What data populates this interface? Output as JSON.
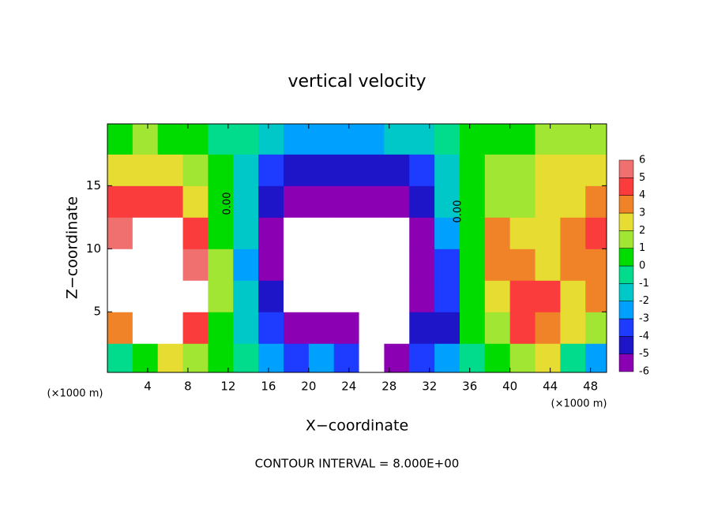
{
  "chart_data": {
    "type": "heatmap",
    "title": "vertical velocity",
    "x_label": "X−coordinate",
    "y_label": "Z−coordinate",
    "x_unit": "(×1000 m)",
    "x_unit_right": "(×1000 m)",
    "footer": "CONTOUR INTERVAL = 8.000E+00",
    "contour_labels": [
      "0.00",
      "0.00"
    ],
    "xlim": [
      0,
      49.6
    ],
    "ylim": [
      0.2,
      19.9
    ],
    "xticks": [
      4,
      8,
      12,
      16,
      20,
      24,
      28,
      32,
      36,
      40,
      44,
      48
    ],
    "yticks": [
      5,
      10,
      15
    ],
    "x": [
      1.25,
      3.75,
      6.25,
      8.75,
      11.25,
      13.75,
      16.25,
      18.75,
      21.25,
      23.75,
      26.25,
      28.75,
      31.25,
      33.75,
      36.25,
      38.75,
      41.25,
      43.75,
      46.25,
      48.75
    ],
    "y": [
      1.25,
      3.75,
      6.25,
      8.75,
      11.25,
      13.75,
      16.25,
      18.75
    ],
    "z": [
      [
        0,
        4,
        8,
        8,
        5.5,
        4.5,
        3,
        1
      ],
      [
        1,
        7,
        8,
        8,
        7,
        4.5,
        3,
        1.5
      ],
      [
        3,
        7,
        8,
        8,
        7,
        4.5,
        2.5,
        1
      ],
      [
        2,
        5,
        6.5,
        5.5,
        5,
        3,
        1.5,
        0.5
      ],
      [
        0.5,
        1,
        1.5,
        1.5,
        1,
        0.5,
        0.5,
        0
      ],
      [
        -0.5,
        -1,
        -1.5,
        -2,
        -1.5,
        -1,
        -1,
        -0.5
      ],
      [
        -2,
        -3,
        -4.5,
        -5,
        -5,
        -4.5,
        -3,
        -1.5
      ],
      [
        -3,
        -5,
        -8,
        -8,
        -8,
        -5,
        -4,
        -2
      ],
      [
        -2,
        -5,
        -7,
        -8,
        -8,
        -5,
        -4,
        -2
      ],
      [
        -3,
        -5,
        -8,
        -8,
        -7,
        -5,
        -4,
        -2
      ],
      [
        -8,
        -8,
        -8,
        -8,
        -8,
        -6,
        -4,
        -2
      ],
      [
        -5,
        -8,
        -8,
        -8,
        -8,
        -5,
        -4,
        -1.5
      ],
      [
        -3,
        -4.5,
        -5,
        -5,
        -5,
        -4,
        -3,
        -1
      ],
      [
        -2,
        -4,
        -3.5,
        -3,
        -2,
        -1.5,
        -1,
        0
      ],
      [
        -0.5,
        0.5,
        0.5,
        0.5,
        0.5,
        0.5,
        0.5,
        0.5
      ],
      [
        1,
        2,
        3,
        3.5,
        4,
        2,
        1.5,
        1
      ],
      [
        2,
        4.5,
        4.5,
        3.5,
        2.5,
        2,
        1.5,
        1
      ],
      [
        3,
        4,
        4.5,
        3,
        3,
        2.5,
        3,
        1.5
      ],
      [
        -0.5,
        3,
        3,
        4,
        4,
        3,
        2.5,
        1.5
      ],
      [
        -2,
        2,
        4,
        4,
        4.5,
        4,
        2.5,
        1.5
      ]
    ],
    "levels": [
      -6,
      -5,
      -4,
      -3,
      -2,
      -1,
      0,
      1,
      2,
      3,
      4,
      5,
      6
    ],
    "colors": [
      "#8c00b4",
      "#1e14c8",
      "#1e3cff",
      "#00a0ff",
      "#00c8c8",
      "#00dc8c",
      "#00dc00",
      "#a0e632",
      "#e6dc32",
      "#f08228",
      "#fa3c3c",
      "#f07070"
    ],
    "out_of_range_color": "#ffffff"
  }
}
